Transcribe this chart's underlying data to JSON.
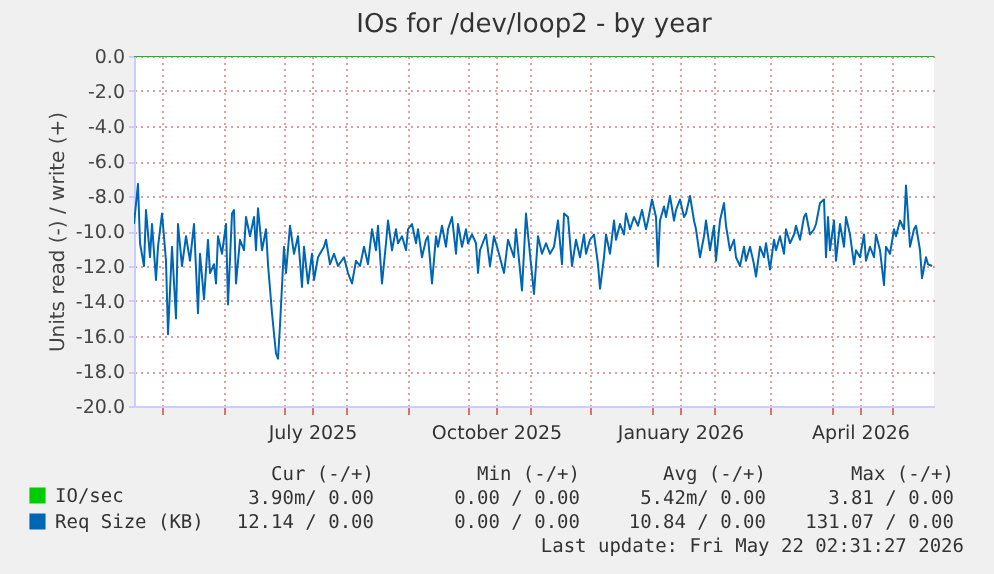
{
  "chart_data": {
    "type": "line",
    "title": "IOs for /dev/loop2 - by year",
    "ylabel": "Units read (-) / write (+)",
    "xlim": [
      "2025-04-17",
      "2026-05-22"
    ],
    "xticks": [
      {
        "value": "2025-05-01",
        "label": null
      },
      {
        "value": "2025-06-01",
        "label": null
      },
      {
        "value": "2025-07-01",
        "label": null
      },
      {
        "value": "2025-07-15",
        "label": "July 2025"
      },
      {
        "value": "2025-08-01",
        "label": null
      },
      {
        "value": "2025-09-01",
        "label": null
      },
      {
        "value": "2025-10-01",
        "label": null
      },
      {
        "value": "2025-10-15",
        "label": "October 2025"
      },
      {
        "value": "2025-11-01",
        "label": null
      },
      {
        "value": "2025-12-01",
        "label": null
      },
      {
        "value": "2026-01-01",
        "label": null
      },
      {
        "value": "2026-01-15",
        "label": "January 2026"
      },
      {
        "value": "2026-02-01",
        "label": null
      },
      {
        "value": "2026-03-01",
        "label": null
      },
      {
        "value": "2026-04-01",
        "label": null
      },
      {
        "value": "2026-04-15",
        "label": "April 2026"
      },
      {
        "value": "2026-05-01",
        "label": null
      }
    ],
    "ylim": [
      -20,
      0
    ],
    "yticks": [
      {
        "value": -20,
        "label": "-20.0"
      },
      {
        "value": -18,
        "label": "-18.0"
      },
      {
        "value": -16,
        "label": "-16.0"
      },
      {
        "value": -14,
        "label": "-14.0"
      },
      {
        "value": -12,
        "label": "-12.0"
      },
      {
        "value": -10,
        "label": "-10.0"
      },
      {
        "value": -8,
        "label": "-8.0"
      },
      {
        "value": -6,
        "label": "-6.0"
      },
      {
        "value": -4,
        "label": "-4.0"
      },
      {
        "value": -2,
        "label": "-2.0"
      },
      {
        "value": 0,
        "label": "0.0"
      }
    ],
    "grid": true,
    "legend": "bottom left",
    "series": [
      {
        "name": "IO/sec",
        "color": "#00cc00",
        "x": [
          "2025-04-17",
          "2026-05-22"
        ],
        "values": [
          0,
          0
        ]
      },
      {
        "name": "Req Size (KB)",
        "color": "#0066b3",
        "x": [
          "2025-04-17",
          "2025-04-19",
          "2025-04-20",
          "2025-04-22",
          "2025-04-23",
          "2025-04-25",
          "2025-04-26",
          "2025-04-28",
          "2025-04-29",
          "2025-05-01",
          "2025-05-03",
          "2025-05-04",
          "2025-05-06",
          "2025-05-08",
          "2025-05-09",
          "2025-05-11",
          "2025-05-13",
          "2025-05-15",
          "2025-05-17",
          "2025-05-19",
          "2025-05-20",
          "2025-05-22",
          "2025-05-24",
          "2025-05-25",
          "2025-05-27",
          "2025-05-28",
          "2025-05-29",
          "2025-05-31",
          "2025-06-02",
          "2025-06-03",
          "2025-06-05",
          "2025-06-06",
          "2025-06-07",
          "2025-06-09",
          "2025-06-11",
          "2025-06-12",
          "2025-06-14",
          "2025-06-16",
          "2025-06-17",
          "2025-06-18",
          "2025-06-20",
          "2025-06-22",
          "2025-06-23",
          "2025-06-25",
          "2025-06-27",
          "2025-06-28",
          "2025-06-29",
          "2025-07-01",
          "2025-07-02",
          "2025-07-04",
          "2025-07-06",
          "2025-07-08",
          "2025-07-10",
          "2025-07-11",
          "2025-07-13",
          "2025-07-15",
          "2025-07-16",
          "2025-07-18",
          "2025-07-21",
          "2025-07-22",
          "2025-07-24",
          "2025-07-26",
          "2025-07-28",
          "2025-07-31",
          "2025-08-02",
          "2025-08-04",
          "2025-08-06",
          "2025-08-08",
          "2025-08-10",
          "2025-08-12",
          "2025-08-14",
          "2025-08-16",
          "2025-08-17",
          "2025-08-19",
          "2025-08-21",
          "2025-08-22",
          "2025-08-24",
          "2025-08-26",
          "2025-08-27",
          "2025-08-29",
          "2025-08-31",
          "2025-09-01",
          "2025-09-03",
          "2025-09-05",
          "2025-09-06",
          "2025-09-08",
          "2025-09-10",
          "2025-09-11",
          "2025-09-13",
          "2025-09-15",
          "2025-09-16",
          "2025-09-18",
          "2025-09-20",
          "2025-09-21",
          "2025-09-23",
          "2025-09-25",
          "2025-09-26",
          "2025-09-28",
          "2025-09-30",
          "2025-10-01",
          "2025-10-03",
          "2025-10-05",
          "2025-10-06",
          "2025-10-07",
          "2025-10-10",
          "2025-10-12",
          "2025-10-14",
          "2025-10-16",
          "2025-10-19",
          "2025-10-21",
          "2025-10-24",
          "2025-10-25",
          "2025-10-28",
          "2025-10-30",
          "2025-10-31",
          "2025-11-03",
          "2025-11-05",
          "2025-11-07",
          "2025-11-09",
          "2025-11-11",
          "2025-11-13",
          "2025-11-15",
          "2025-11-17",
          "2025-11-18",
          "2025-11-20",
          "2025-11-22",
          "2025-11-24",
          "2025-11-26",
          "2025-11-28",
          "2025-11-29",
          "2025-12-01",
          "2025-12-03",
          "2025-12-05",
          "2025-12-06",
          "2025-12-08",
          "2025-12-09",
          "2025-12-11",
          "2025-12-13",
          "2025-12-14",
          "2025-12-16",
          "2025-12-18",
          "2025-12-19",
          "2025-12-21",
          "2025-12-23",
          "2025-12-25",
          "2025-12-27",
          "2025-12-29",
          "2025-12-30",
          "2026-01-01",
          "2026-01-03",
          "2026-01-04",
          "2026-01-05",
          "2026-01-07",
          "2026-01-08",
          "2026-01-10",
          "2026-01-12",
          "2026-01-13",
          "2026-01-15",
          "2026-01-17",
          "2026-01-18",
          "2026-01-20",
          "2026-01-22",
          "2026-01-23",
          "2026-01-25",
          "2026-01-27",
          "2026-01-28",
          "2026-01-30",
          "2026-02-01",
          "2026-02-02",
          "2026-02-04",
          "2026-02-06",
          "2026-02-07",
          "2026-02-09",
          "2026-02-11",
          "2026-02-12",
          "2026-02-14",
          "2026-02-16",
          "2026-02-17",
          "2026-02-19",
          "2026-02-21",
          "2026-02-22",
          "2026-02-24",
          "2026-02-26",
          "2026-02-27",
          "2026-03-01",
          "2026-03-03",
          "2026-03-04",
          "2026-03-06",
          "2026-03-08",
          "2026-03-09",
          "2026-03-11",
          "2026-03-13",
          "2026-03-14",
          "2026-03-16",
          "2026-03-18",
          "2026-03-19",
          "2026-03-21",
          "2026-03-23",
          "2026-03-24",
          "2026-03-26",
          "2026-03-28",
          "2026-03-29",
          "2026-03-30",
          "2026-03-31",
          "2026-04-02",
          "2026-04-03",
          "2026-04-05",
          "2026-04-07",
          "2026-04-08",
          "2026-04-10",
          "2026-04-12",
          "2026-04-13",
          "2026-04-15",
          "2026-04-17",
          "2026-04-18",
          "2026-04-20",
          "2026-04-22",
          "2026-04-23",
          "2026-04-25",
          "2026-04-27",
          "2026-04-28",
          "2026-04-30",
          "2026-05-02",
          "2026-05-03",
          "2026-05-05",
          "2026-05-07",
          "2026-05-08",
          "2026-05-10",
          "2026-05-12",
          "2026-05-13",
          "2026-05-15",
          "2026-05-16",
          "2026-05-18",
          "2026-05-19",
          "2026-05-21"
        ],
        "values": [
          -9.6,
          -7.3,
          -10.7,
          -12.0,
          -8.8,
          -11.5,
          -9.6,
          -12.8,
          -10.9,
          -9.0,
          -11.7,
          -15.9,
          -10.9,
          -15.0,
          -9.6,
          -12.0,
          -10.3,
          -11.7,
          -9.6,
          -14.7,
          -11.3,
          -13.9,
          -10.5,
          -12.4,
          -11.9,
          -13.0,
          -10.3,
          -11.3,
          -9.6,
          -14.2,
          -9.0,
          -8.8,
          -13.0,
          -10.5,
          -11.1,
          -9.2,
          -10.3,
          -9.2,
          -11.1,
          -8.7,
          -11.1,
          -9.9,
          -11.9,
          -14.7,
          -17.0,
          -17.3,
          -15.4,
          -10.9,
          -12.4,
          -9.7,
          -11.3,
          -10.3,
          -13.2,
          -10.9,
          -13.0,
          -11.3,
          -12.8,
          -11.5,
          -10.9,
          -10.5,
          -11.9,
          -11.3,
          -12.0,
          -11.5,
          -12.4,
          -13.0,
          -11.7,
          -12.0,
          -10.9,
          -11.9,
          -9.9,
          -11.1,
          -9.7,
          -13.0,
          -10.7,
          -9.4,
          -11.1,
          -9.9,
          -10.7,
          -10.3,
          -11.1,
          -9.9,
          -9.6,
          -10.7,
          -9.9,
          -11.5,
          -10.5,
          -10.3,
          -13.0,
          -10.3,
          -10.9,
          -9.7,
          -10.9,
          -9.9,
          -9.2,
          -11.3,
          -9.6,
          -10.9,
          -9.9,
          -10.7,
          -10.2,
          -10.7,
          -12.4,
          -11.1,
          -10.2,
          -12.0,
          -10.3,
          -11.1,
          -12.4,
          -10.5,
          -11.5,
          -9.9,
          -13.4,
          -9.0,
          -10.2,
          -13.6,
          -10.3,
          -11.3,
          -10.7,
          -11.3,
          -10.9,
          -9.4,
          -11.9,
          -9.0,
          -9.2,
          -12.0,
          -10.5,
          -11.5,
          -10.2,
          -11.3,
          -10.5,
          -10.2,
          -11.9,
          -13.3,
          -11.5,
          -10.2,
          -11.3,
          -9.4,
          -10.5,
          -9.6,
          -10.2,
          -9.0,
          -9.9,
          -9.2,
          -9.7,
          -8.8,
          -9.9,
          -9.4,
          -8.2,
          -9.2,
          -12.0,
          -9.4,
          -8.6,
          -9.2,
          -8.0,
          -9.4,
          -8.8,
          -8.2,
          -9.2,
          -9.0,
          -8.0,
          -9.4,
          -9.9,
          -11.5,
          -10.3,
          -9.4,
          -11.1,
          -9.7,
          -11.7,
          -9.4,
          -8.4,
          -9.7,
          -11.1,
          -10.5,
          -11.5,
          -12.0,
          -10.9,
          -11.7,
          -10.9,
          -11.9,
          -12.6,
          -10.9,
          -11.5,
          -10.7,
          -12.2,
          -10.5,
          -11.1,
          -10.3,
          -11.3,
          -9.9,
          -10.7,
          -10.2,
          -9.7,
          -10.5,
          -9.2,
          -9.0,
          -10.2,
          -9.9,
          -9.6,
          -8.4,
          -8.2,
          -11.5,
          -9.2,
          -11.1,
          -9.4,
          -11.7,
          -9.6,
          -10.9,
          -9.2,
          -10.2,
          -11.9,
          -11.1,
          -11.5,
          -10.2,
          -11.7,
          -10.9,
          -11.5,
          -10.2,
          -11.1,
          -13.1,
          -10.9,
          -11.3,
          -9.9,
          -10.3,
          -9.4,
          -9.9,
          -7.4,
          -10.9,
          -9.9,
          -9.7,
          -11.1,
          -12.7,
          -11.5,
          -11.9,
          -12.0
        ]
      }
    ],
    "annotations": [
      "Cur (-/+)",
      "Min (-/+)",
      "Avg (-/+)",
      "Max (-/+)",
      "3.90m/ 0.00",
      "0.00 / 0.00",
      "5.42m/ 0.00",
      "3.81 / 0.00",
      "12.14 / 0.00",
      "0.00 / 0.00",
      "10.84 / 0.00",
      "131.07 / 0.00",
      "Last update: Fri May 22 02:31:27 2026"
    ]
  }
}
